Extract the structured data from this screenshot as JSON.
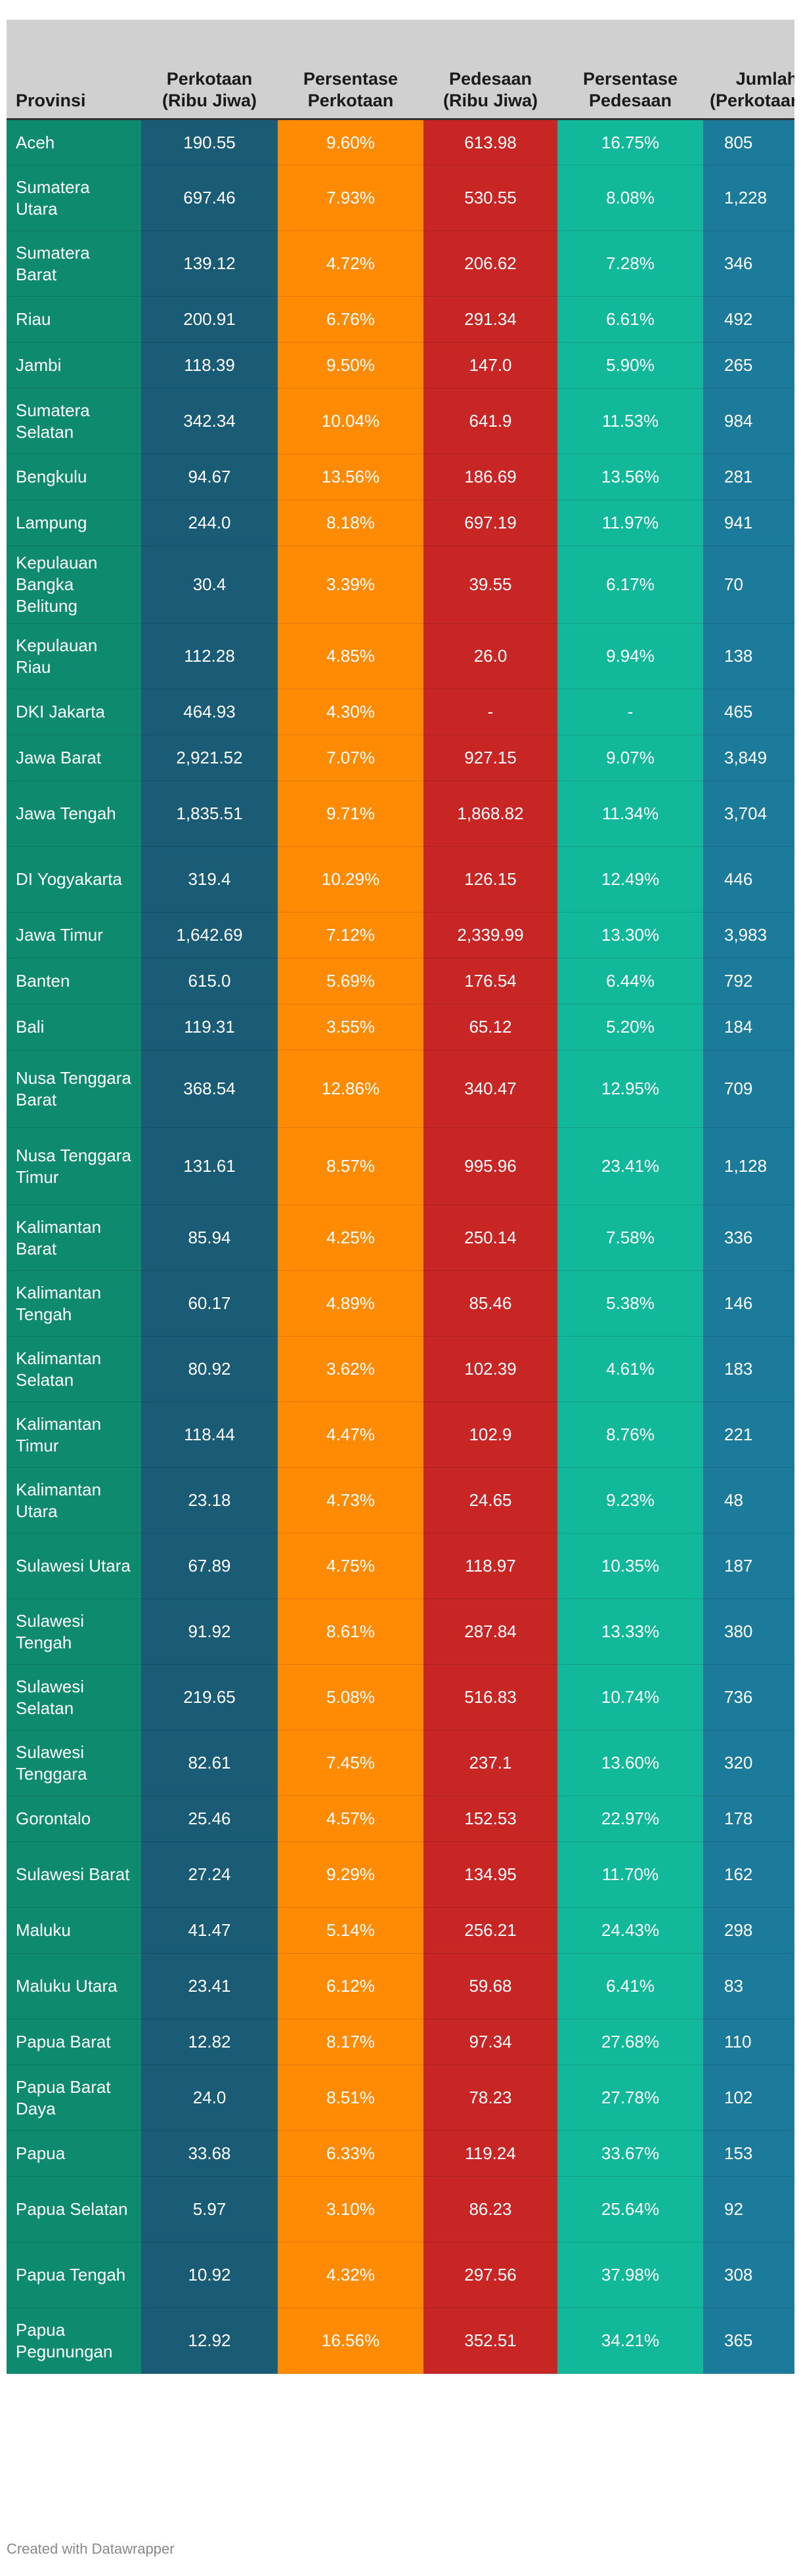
{
  "chart_data": {
    "type": "table",
    "columns": [
      "Provinsi",
      "Perkotaan (Ribu Jiwa)",
      "Persentase Perkotaan",
      "Pedesaan (Ribu Jiwa)",
      "Persentase Pedesaan",
      "Jumlah (Perkotaan+Pedesaan)"
    ],
    "rows": [
      [
        "Aceh",
        "190.55",
        "9.60%",
        "613.98",
        "16.75%",
        "805"
      ],
      [
        "Sumatera Utara",
        "697.46",
        "7.93%",
        "530.55",
        "8.08%",
        "1,228"
      ],
      [
        "Sumatera Barat",
        "139.12",
        "4.72%",
        "206.62",
        "7.28%",
        "346"
      ],
      [
        "Riau",
        "200.91",
        "6.76%",
        "291.34",
        "6.61%",
        "492"
      ],
      [
        "Jambi",
        "118.39",
        "9.50%",
        "147.0",
        "5.90%",
        "265"
      ],
      [
        "Sumatera Selatan",
        "342.34",
        "10.04%",
        "641.9",
        "11.53%",
        "984"
      ],
      [
        "Bengkulu",
        "94.67",
        "13.56%",
        "186.69",
        "13.56%",
        "281"
      ],
      [
        "Lampung",
        "244.0",
        "8.18%",
        "697.19",
        "11.97%",
        "941"
      ],
      [
        "Kepulauan Bangka Belitung",
        "30.4",
        "3.39%",
        "39.55",
        "6.17%",
        "70"
      ],
      [
        "Kepulauan Riau",
        "112.28",
        "4.85%",
        "26.0",
        "9.94%",
        "138"
      ],
      [
        "DKI Jakarta",
        "464.93",
        "4.30%",
        "-",
        "-",
        "465"
      ],
      [
        "Jawa Barat",
        "2,921.52",
        "7.07%",
        "927.15",
        "9.07%",
        "3,849"
      ],
      [
        "Jawa Tengah",
        "1,835.51",
        "9.71%",
        "1,868.82",
        "11.34%",
        "3,704"
      ],
      [
        "DI Yogyakarta",
        "319.4",
        "10.29%",
        "126.15",
        "12.49%",
        "446"
      ],
      [
        "Jawa Timur",
        "1,642.69",
        "7.12%",
        "2,339.99",
        "13.30%",
        "3,983"
      ],
      [
        "Banten",
        "615.0",
        "5.69%",
        "176.54",
        "6.44%",
        "792"
      ],
      [
        "Bali",
        "119.31",
        "3.55%",
        "65.12",
        "5.20%",
        "184"
      ],
      [
        "Nusa Tenggara Barat",
        "368.54",
        "12.86%",
        "340.47",
        "12.95%",
        "709"
      ],
      [
        "Nusa Tenggara Timur",
        "131.61",
        "8.57%",
        "995.96",
        "23.41%",
        "1,128"
      ],
      [
        "Kalimantan Barat",
        "85.94",
        "4.25%",
        "250.14",
        "7.58%",
        "336"
      ],
      [
        "Kalimantan Tengah",
        "60.17",
        "4.89%",
        "85.46",
        "5.38%",
        "146"
      ],
      [
        "Kalimantan Selatan",
        "80.92",
        "3.62%",
        "102.39",
        "4.61%",
        "183"
      ],
      [
        "Kalimantan Timur",
        "118.44",
        "4.47%",
        "102.9",
        "8.76%",
        "221"
      ],
      [
        "Kalimantan Utara",
        "23.18",
        "4.73%",
        "24.65",
        "9.23%",
        "48"
      ],
      [
        "Sulawesi Utara",
        "67.89",
        "4.75%",
        "118.97",
        "10.35%",
        "187"
      ],
      [
        "Sulawesi Tengah",
        "91.92",
        "8.61%",
        "287.84",
        "13.33%",
        "380"
      ],
      [
        "Sulawesi Selatan",
        "219.65",
        "5.08%",
        "516.83",
        "10.74%",
        "736"
      ],
      [
        "Sulawesi Tenggara",
        "82.61",
        "7.45%",
        "237.1",
        "13.60%",
        "320"
      ],
      [
        "Gorontalo",
        "25.46",
        "4.57%",
        "152.53",
        "22.97%",
        "178"
      ],
      [
        "Sulawesi Barat",
        "27.24",
        "9.29%",
        "134.95",
        "11.70%",
        "162"
      ],
      [
        "Maluku",
        "41.47",
        "5.14%",
        "256.21",
        "24.43%",
        "298"
      ],
      [
        "Maluku Utara",
        "23.41",
        "6.12%",
        "59.68",
        "6.41%",
        "83"
      ],
      [
        "Papua Barat",
        "12.82",
        "8.17%",
        "97.34",
        "27.68%",
        "110"
      ],
      [
        "Papua Barat Daya",
        "24.0",
        "8.51%",
        "78.23",
        "27.78%",
        "102"
      ],
      [
        "Papua",
        "33.68",
        "6.33%",
        "119.24",
        "33.67%",
        "153"
      ],
      [
        "Papua Selatan",
        "5.97",
        "3.10%",
        "86.23",
        "25.64%",
        "92"
      ],
      [
        "Papua Tengah",
        "10.92",
        "4.32%",
        "297.56",
        "37.98%",
        "308"
      ],
      [
        "Papua Pegunungan",
        "12.92",
        "16.56%",
        "352.51",
        "34.21%",
        "365"
      ]
    ]
  },
  "credit": "Created with Datawrapper"
}
